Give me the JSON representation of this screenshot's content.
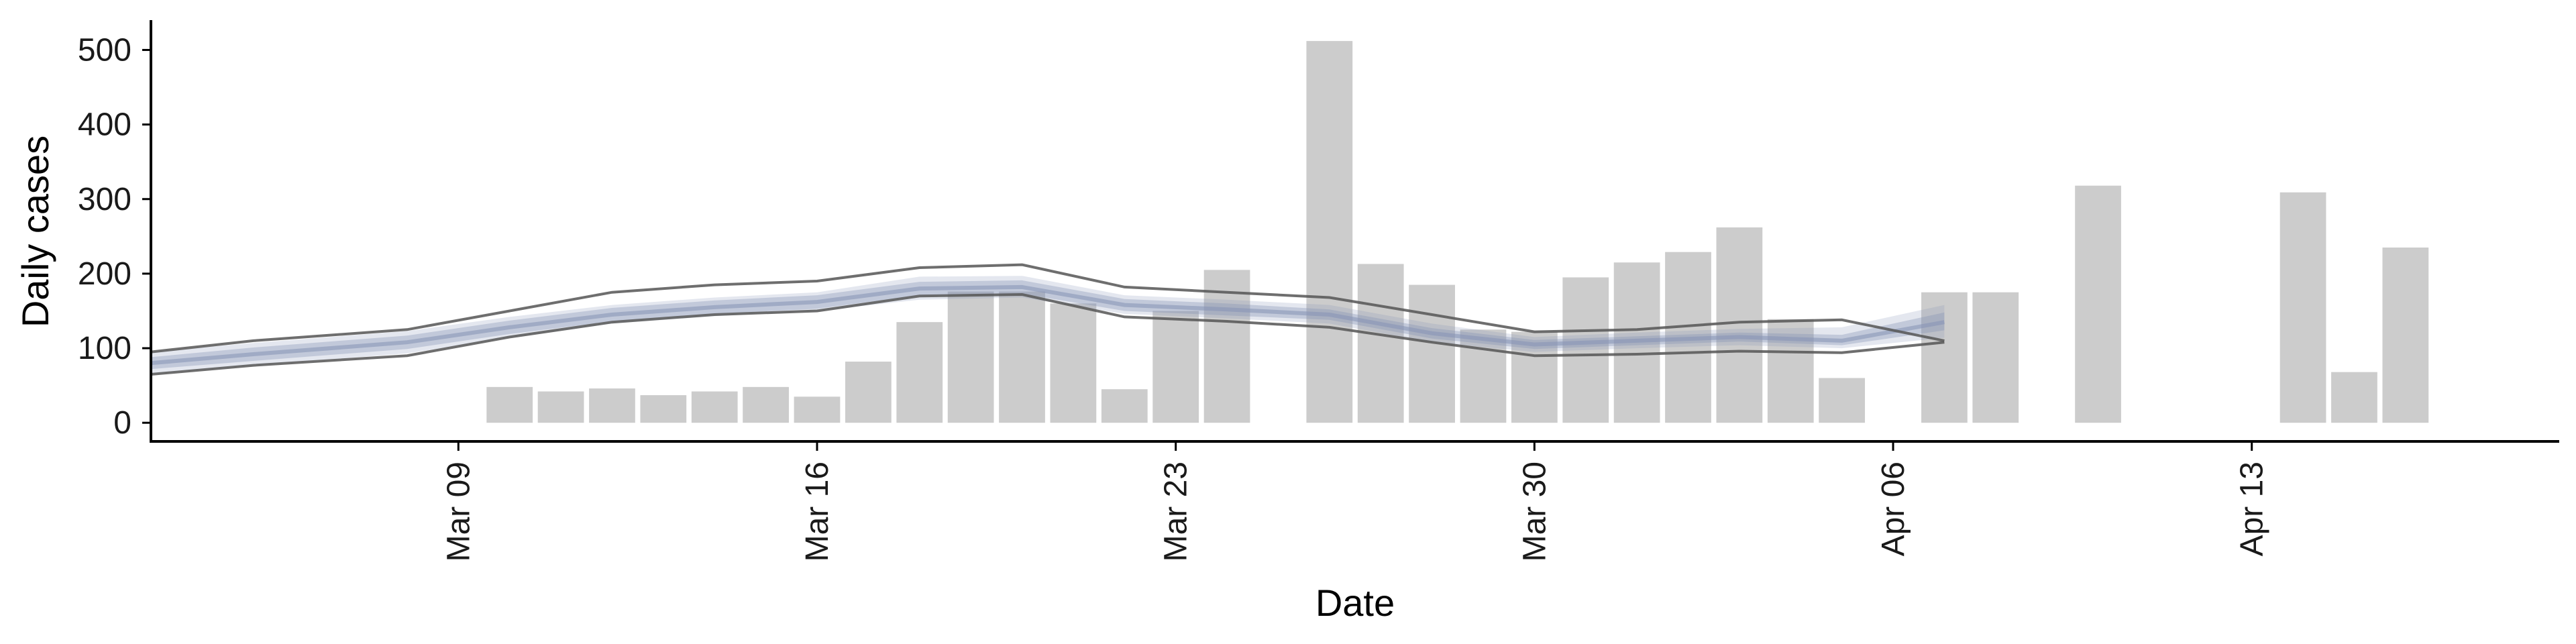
{
  "chart_data": {
    "type": "bar",
    "xlabel": "Date",
    "ylabel": "Daily cases",
    "x_axis": "date",
    "xlim": [
      "2020-03-03",
      "2020-04-19"
    ],
    "ylim": [
      -25,
      540
    ],
    "y_ticks": [
      0,
      100,
      200,
      300,
      400,
      500
    ],
    "x_ticks": [
      {
        "date": "2020-03-09",
        "label": "Mar 09"
      },
      {
        "date": "2020-03-16",
        "label": "Mar 16"
      },
      {
        "date": "2020-03-23",
        "label": "Mar 23"
      },
      {
        "date": "2020-03-30",
        "label": "Mar 30"
      },
      {
        "date": "2020-04-06",
        "label": "Apr 06"
      },
      {
        "date": "2020-04-13",
        "label": "Apr 13"
      }
    ],
    "grid": false,
    "bars": {
      "color": "#cccccc",
      "x": [
        "2020-03-10",
        "2020-03-11",
        "2020-03-12",
        "2020-03-13",
        "2020-03-14",
        "2020-03-15",
        "2020-03-16",
        "2020-03-17",
        "2020-03-18",
        "2020-03-19",
        "2020-03-20",
        "2020-03-21",
        "2020-03-22",
        "2020-03-23",
        "2020-03-24",
        "2020-03-26",
        "2020-03-27",
        "2020-03-28",
        "2020-03-29",
        "2020-03-30",
        "2020-03-31",
        "2020-04-01",
        "2020-04-02",
        "2020-04-03",
        "2020-04-04",
        "2020-04-05",
        "2020-04-07",
        "2020-04-08",
        "2020-04-10",
        "2020-04-14",
        "2020-04-15",
        "2020-04-16"
      ],
      "values": [
        48,
        42,
        46,
        37,
        42,
        48,
        35,
        82,
        135,
        176,
        176,
        160,
        45,
        150,
        205,
        512,
        213,
        185,
        125,
        122,
        195,
        215,
        229,
        262,
        139,
        60,
        175,
        175,
        318,
        309,
        68,
        235
      ]
    },
    "estimate": {
      "color": "#8591b5",
      "x": [
        "2020-03-03",
        "2020-03-05",
        "2020-03-08",
        "2020-03-10",
        "2020-03-12",
        "2020-03-14",
        "2020-03-16",
        "2020-03-18",
        "2020-03-20",
        "2020-03-22",
        "2020-03-24",
        "2020-03-26",
        "2020-03-28",
        "2020-03-30",
        "2020-04-01",
        "2020-04-03",
        "2020-04-05",
        "2020-04-07"
      ],
      "median": [
        80,
        92,
        108,
        128,
        145,
        155,
        162,
        180,
        182,
        158,
        152,
        145,
        120,
        105,
        110,
        115,
        110,
        135
      ],
      "inner_lower": [
        72,
        83,
        99,
        119,
        136,
        146,
        153,
        171,
        173,
        150,
        144,
        138,
        113,
        99,
        104,
        109,
        104,
        124
      ],
      "inner_upper": [
        88,
        101,
        117,
        137,
        154,
        164,
        171,
        189,
        191,
        166,
        160,
        152,
        127,
        111,
        116,
        121,
        118,
        148
      ],
      "outer_lower": [
        65,
        77,
        93,
        114,
        133,
        143,
        150,
        165,
        168,
        146,
        140,
        133,
        108,
        95,
        100,
        104,
        100,
        114
      ],
      "outer_upper": [
        95,
        107,
        123,
        142,
        158,
        168,
        175,
        196,
        197,
        171,
        165,
        158,
        133,
        115,
        121,
        126,
        128,
        158
      ]
    },
    "reference_band": {
      "color": "#555555",
      "x": [
        "2020-03-03",
        "2020-03-05",
        "2020-03-08",
        "2020-03-10",
        "2020-03-12",
        "2020-03-14",
        "2020-03-16",
        "2020-03-18",
        "2020-03-20",
        "2020-03-22",
        "2020-03-24",
        "2020-03-26",
        "2020-03-28",
        "2020-03-30",
        "2020-04-01",
        "2020-04-03",
        "2020-04-05",
        "2020-04-07"
      ],
      "upper": [
        95,
        110,
        125,
        150,
        175,
        185,
        190,
        208,
        212,
        182,
        175,
        168,
        145,
        122,
        125,
        135,
        138,
        110
      ],
      "lower": [
        65,
        77,
        90,
        115,
        135,
        145,
        150,
        170,
        172,
        142,
        136,
        128,
        108,
        90,
        92,
        96,
        94,
        108
      ]
    }
  }
}
